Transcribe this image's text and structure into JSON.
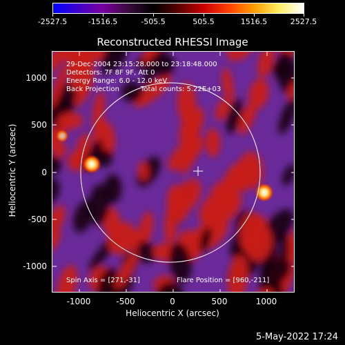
{
  "colorbar": {
    "ticks": [
      "-2527.5",
      "-1516.5",
      "-505.5",
      "505.5",
      "1516.5",
      "2527.5"
    ],
    "colors": [
      "#0000ff",
      "#3f00c8",
      "#7800a0",
      "#3a0a3a",
      "#000000",
      "#5a0000",
      "#c80000",
      "#ff4000",
      "#ff9c00",
      "#ffee60",
      "#ffffff"
    ]
  },
  "title": "Reconstructed RHESSI Image",
  "info": {
    "time_range": "29-Dec-2004 23:15:28.000 to 23:18:48.000",
    "detectors": "Detectors: 7F 8F 9F, Att 0",
    "energy": "Energy Range: 6.0 - 12.0 keV",
    "algorithm": "Back Projection",
    "counts": "Total counts: 5.22E+03",
    "spin_axis": "Spin Axis = [271,-31]",
    "flare_position": "Flare Position = [960,-211]"
  },
  "axes": {
    "xlabel": "Heliocentric X (arcsec)",
    "ylabel": "Heliocentric Y (arcsec)",
    "xticks": [
      "-1000",
      "-500",
      "0",
      "500",
      "1000"
    ],
    "yticks": [
      "1000",
      "500",
      "0",
      "-500",
      "-1000"
    ]
  },
  "footer": {
    "date": "5-May-2022 17:24"
  },
  "palette": {
    "purple": "#6a2a9a",
    "red": "#c81e14",
    "dark": "#1a0408",
    "bright": "#ffe080"
  }
}
